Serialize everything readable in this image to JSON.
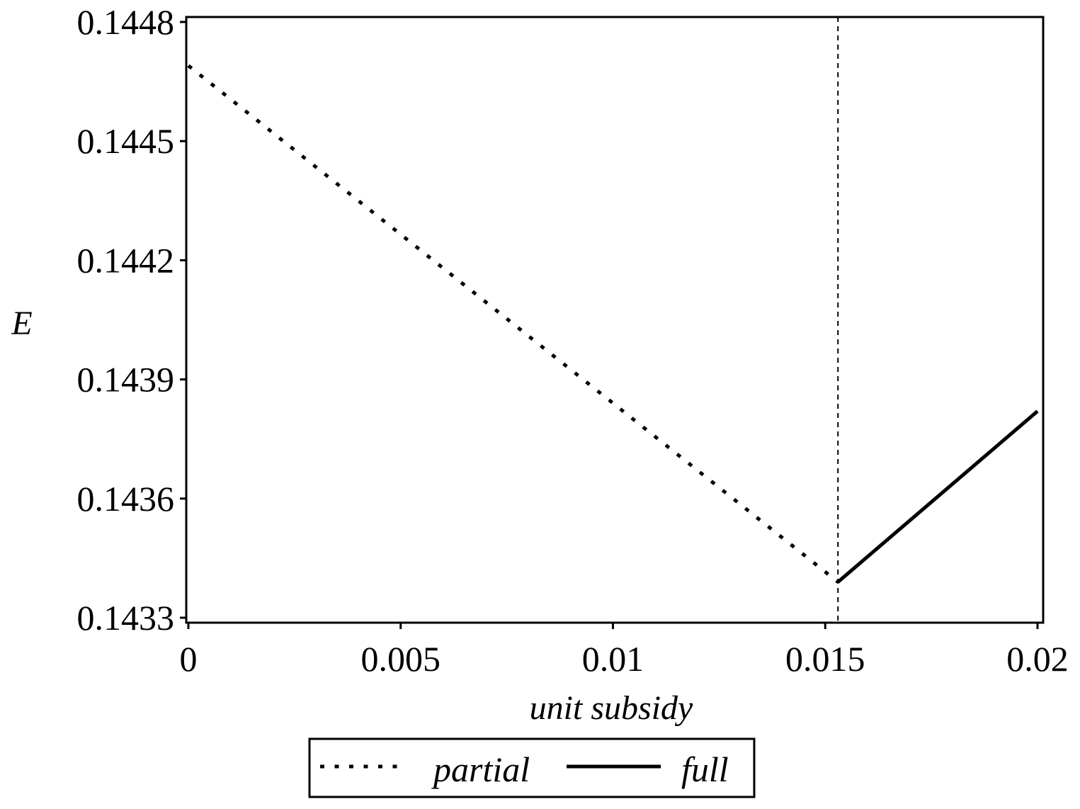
{
  "chart_data": {
    "type": "line",
    "title": "",
    "xlabel": "unit subsidy",
    "ylabel": "E",
    "xlim": [
      0,
      0.02
    ],
    "ylim": [
      0.1433,
      0.1448
    ],
    "x_ticks": [
      0,
      0.005,
      0.01,
      0.015,
      0.02
    ],
    "x_tick_labels": [
      "0",
      "0.005",
      "0.01",
      "0.015",
      "0.02"
    ],
    "y_ticks": [
      0.1433,
      0.1436,
      0.1439,
      0.1442,
      0.1445,
      0.1448
    ],
    "y_tick_labels": [
      "0.1433",
      "0.1436",
      "0.1439",
      "0.1442",
      "0.1445",
      "0.1448"
    ],
    "grid": false,
    "legend_position": "bottom",
    "threshold": {
      "x": 0.0153,
      "style": "dashed"
    },
    "series": [
      {
        "name": "partial",
        "style": "dotted",
        "color": "#000000",
        "x": [
          0,
          0.0153
        ],
        "y": [
          0.14469,
          0.14339
        ]
      },
      {
        "name": "full",
        "style": "solid",
        "color": "#000000",
        "x": [
          0.0153,
          0.02
        ],
        "y": [
          0.14339,
          0.14382
        ]
      }
    ]
  }
}
